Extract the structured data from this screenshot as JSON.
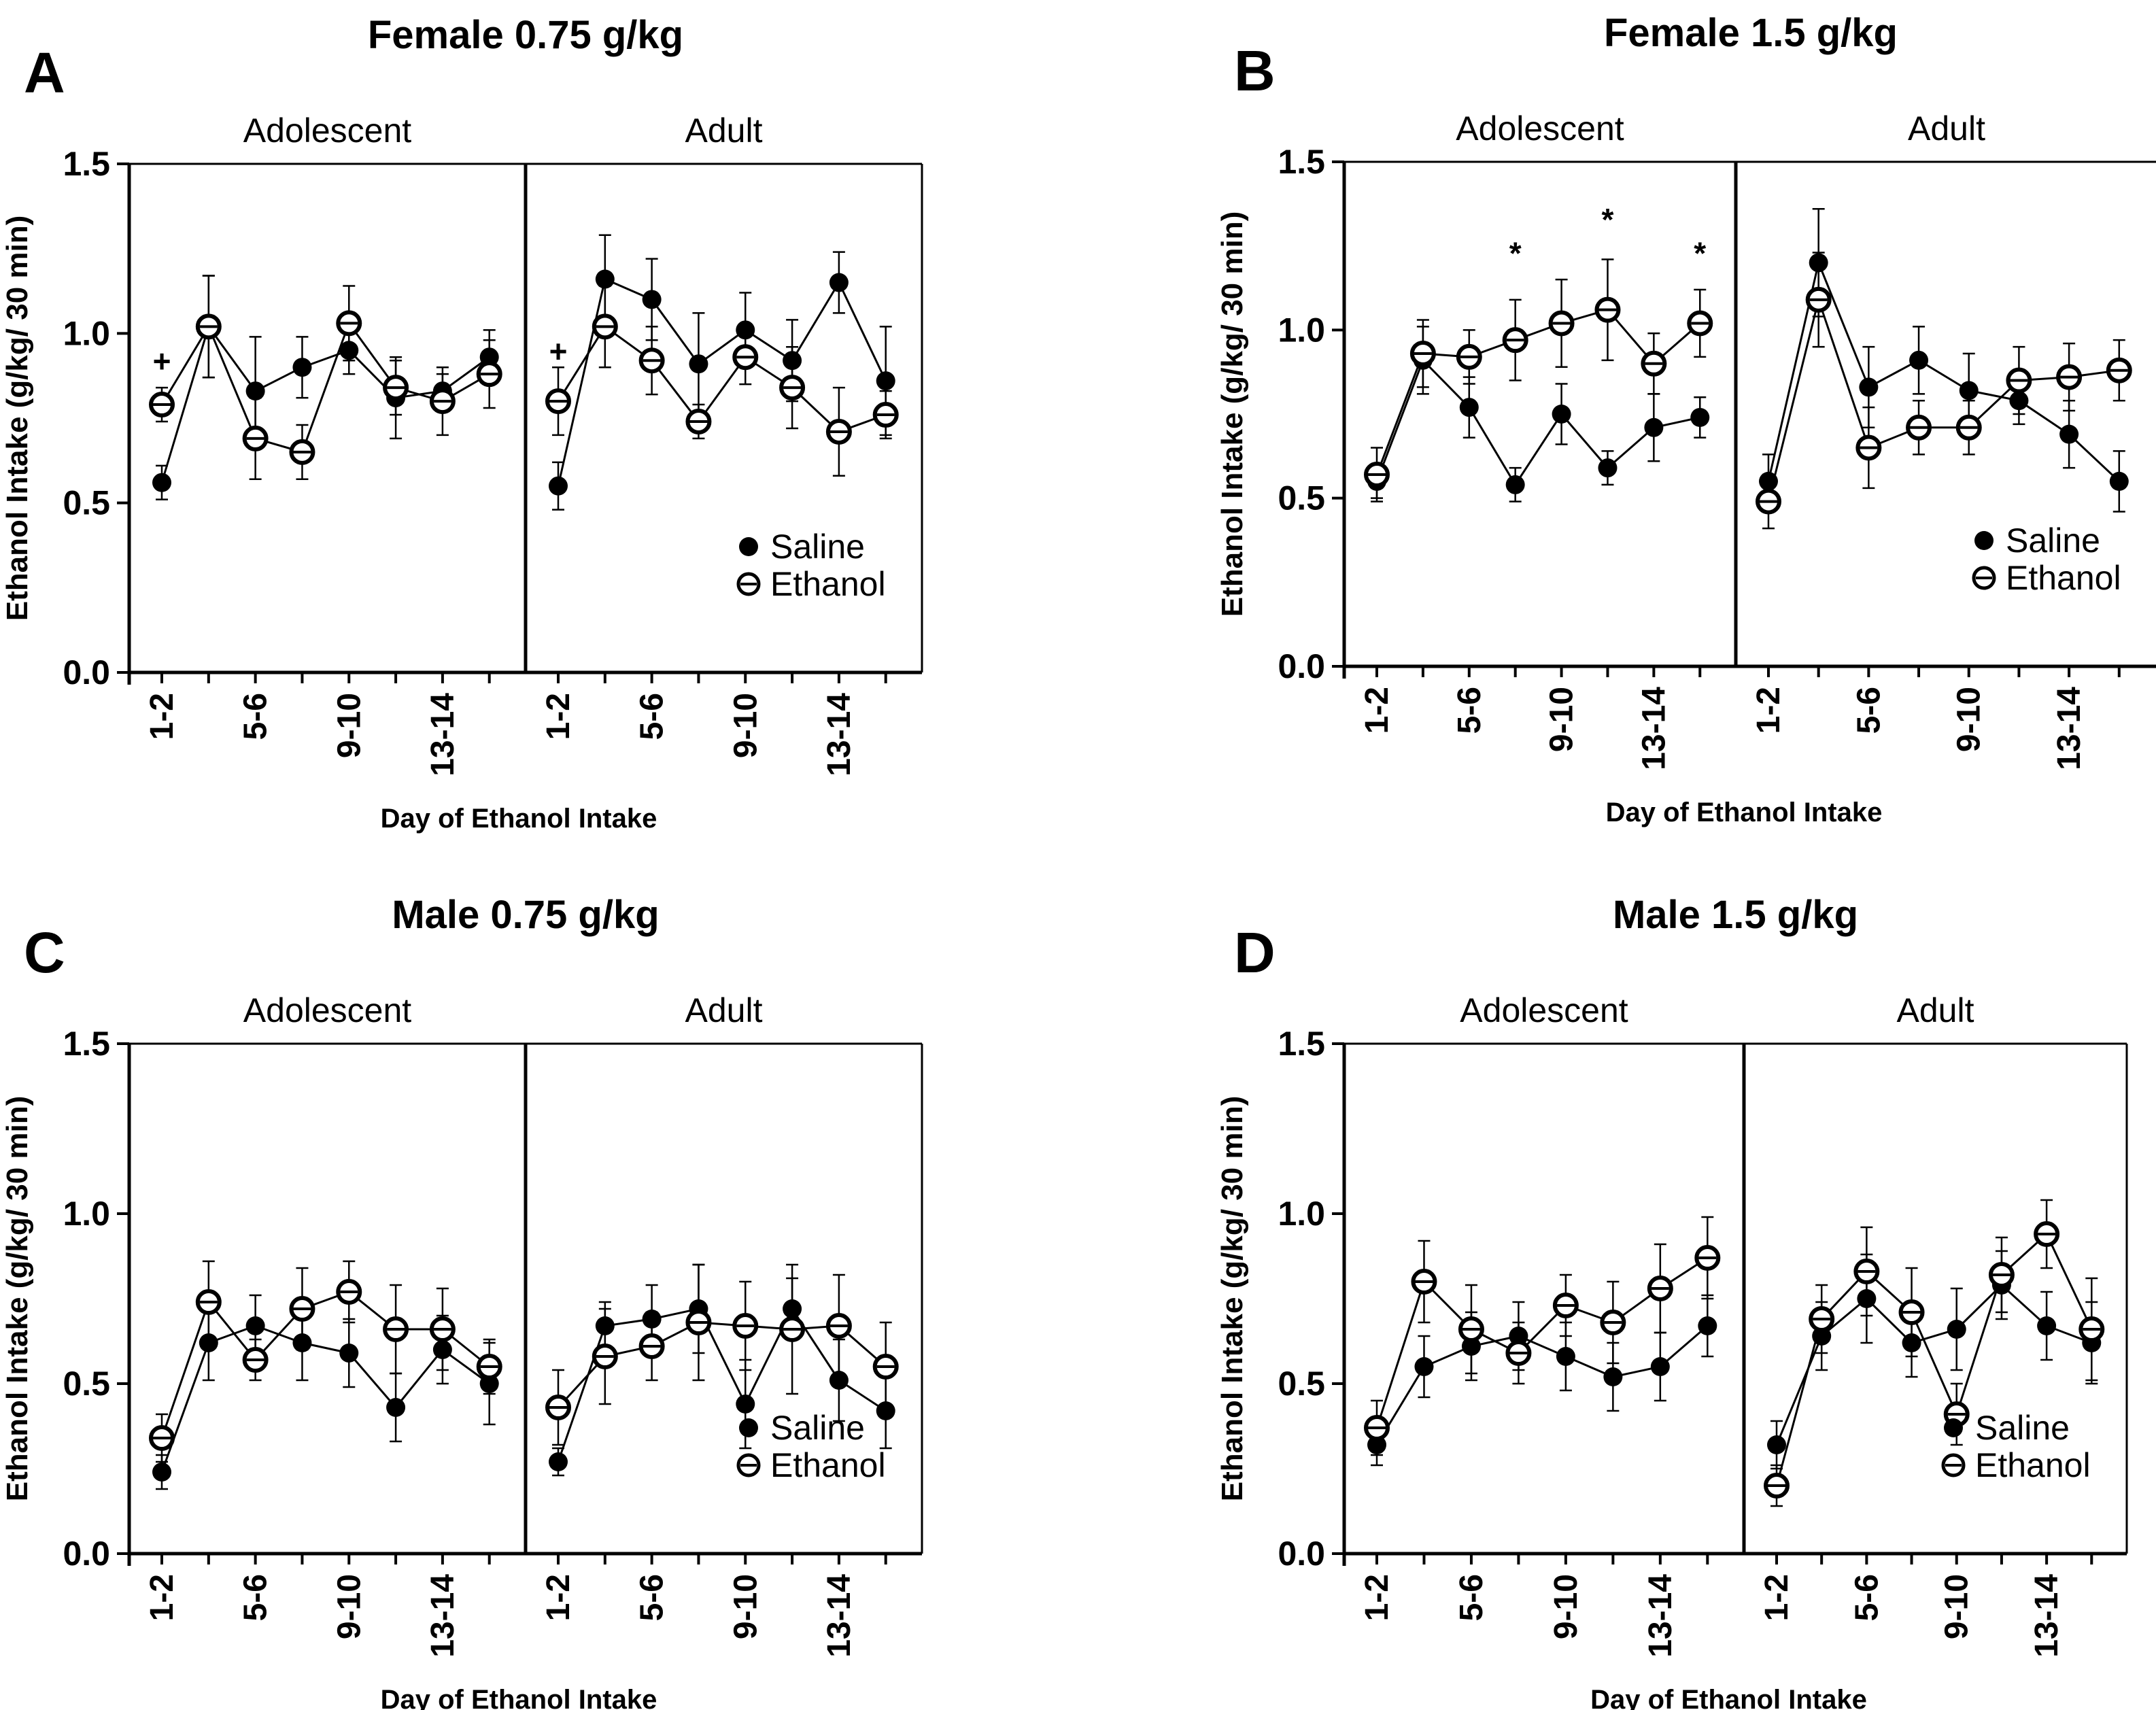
{
  "chart_data": [
    {
      "id": "A",
      "type": "line",
      "title": "Female 0.75 g/kg",
      "letter": "A",
      "ylabel": "Ethanol Intake (g/kg/ 30 min)",
      "xlabel": "Day of Ethanol Intake",
      "ylim": [
        0,
        1.5
      ],
      "yticks": [
        "0.0",
        "0.5",
        "1.0",
        "1.5"
      ],
      "legend": [
        "Saline",
        "Ethanol"
      ],
      "legend_position": "bottom-right",
      "panels": [
        {
          "label": "Adolescent",
          "xticks": [
            "1-2",
            "5-6",
            "9-10",
            "13-14"
          ],
          "saline": {
            "values": [
              0.56,
              1.02,
              0.83,
              0.9,
              0.95,
              0.81,
              0.83,
              0.93
            ],
            "errors": [
              0.05,
              0.15,
              0.16,
              0.09,
              0.07,
              0.12,
              0.05,
              0.08
            ]
          },
          "ethanol": {
            "values": [
              0.79,
              1.02,
              0.69,
              0.65,
              1.03,
              0.84,
              0.8,
              0.88
            ],
            "errors": [
              0.05,
              0.15,
              0.12,
              0.08,
              0.11,
              0.08,
              0.1,
              0.1
            ]
          },
          "annotations": [
            {
              "text": "+",
              "index": 0,
              "y": 0.91
            }
          ]
        },
        {
          "label": "Adult",
          "xticks": [
            "1-2",
            "5-6",
            "9-10",
            "13-14"
          ],
          "saline": {
            "values": [
              0.55,
              1.16,
              1.1,
              0.91,
              1.01,
              0.92,
              1.15,
              0.86
            ],
            "errors": [
              0.07,
              0.13,
              0.12,
              0.15,
              0.11,
              0.12,
              0.09,
              0.16
            ]
          },
          "ethanol": {
            "values": [
              0.8,
              1.02,
              0.92,
              0.74,
              0.93,
              0.84,
              0.71,
              0.76
            ],
            "errors": [
              0.1,
              0.12,
              0.1,
              0.05,
              0.08,
              0.12,
              0.13,
              0.07
            ]
          },
          "annotations": [
            {
              "text": "+",
              "index": 0,
              "y": 0.94
            }
          ]
        }
      ]
    },
    {
      "id": "B",
      "type": "line",
      "title": "Female 1.5 g/kg",
      "letter": "B",
      "ylabel": "Ethanol Intake (g/kg/ 30 min)",
      "xlabel": "Day of Ethanol Intake",
      "ylim": [
        0,
        1.5
      ],
      "yticks": [
        "0.0",
        "0.5",
        "1.0",
        "1.5"
      ],
      "legend": [
        "Saline",
        "Ethanol"
      ],
      "legend_position": "bottom-right",
      "panels": [
        {
          "label": "Adolescent",
          "xticks": [
            "1-2",
            "5-6",
            "9-10",
            "13-14"
          ],
          "saline": {
            "values": [
              0.55,
              0.91,
              0.77,
              0.54,
              0.75,
              0.59,
              0.71,
              0.74
            ],
            "errors": [
              0.05,
              0.1,
              0.09,
              0.05,
              0.09,
              0.05,
              0.1,
              0.06
            ]
          },
          "ethanol": {
            "values": [
              0.57,
              0.93,
              0.92,
              0.97,
              1.02,
              1.06,
              0.9,
              1.02
            ],
            "errors": [
              0.08,
              0.1,
              0.08,
              0.12,
              0.13,
              0.15,
              0.09,
              0.1
            ]
          },
          "annotations": [
            {
              "text": "*",
              "index": 3,
              "y": 1.22
            },
            {
              "text": "*",
              "index": 5,
              "y": 1.32
            },
            {
              "text": "*",
              "index": 7,
              "y": 1.22
            }
          ]
        },
        {
          "label": "Adult",
          "xticks": [
            "1-2",
            "5-6",
            "9-10",
            "13-14"
          ],
          "saline": {
            "values": [
              0.55,
              1.2,
              0.83,
              0.91,
              0.82,
              0.79,
              0.69,
              0.55
            ],
            "errors": [
              0.08,
              0.16,
              0.12,
              0.1,
              0.11,
              0.07,
              0.1,
              0.09
            ]
          },
          "ethanol": {
            "values": [
              0.49,
              1.09,
              0.65,
              0.71,
              0.71,
              0.85,
              0.86,
              0.88
            ],
            "errors": [
              0.08,
              0.14,
              0.12,
              0.08,
              0.08,
              0.1,
              0.1,
              0.09
            ]
          },
          "annotations": []
        }
      ]
    },
    {
      "id": "C",
      "type": "line",
      "title": "Male 0.75 g/kg",
      "letter": "C",
      "ylabel": "Ethanol Intake (g/kg/ 30 min)",
      "xlabel": "Day of Ethanol Intake",
      "ylim": [
        0,
        1.5
      ],
      "yticks": [
        "0.0",
        "0.5",
        "1.0",
        "1.5"
      ],
      "legend": [
        "Saline",
        "Ethanol"
      ],
      "legend_position": "bottom-right",
      "panels": [
        {
          "label": "Adolescent",
          "xticks": [
            "1-2",
            "5-6",
            "9-10",
            "13-14"
          ],
          "saline": {
            "values": [
              0.24,
              0.62,
              0.67,
              0.62,
              0.59,
              0.43,
              0.6,
              0.5
            ],
            "errors": [
              0.05,
              0.11,
              0.09,
              0.11,
              0.1,
              0.1,
              0.1,
              0.12
            ]
          },
          "ethanol": {
            "values": [
              0.34,
              0.74,
              0.57,
              0.72,
              0.77,
              0.66,
              0.66,
              0.55
            ],
            "errors": [
              0.07,
              0.12,
              0.06,
              0.12,
              0.09,
              0.13,
              0.12,
              0.08
            ]
          },
          "annotations": []
        },
        {
          "label": "Adult",
          "xticks": [
            "1-2",
            "5-6",
            "9-10",
            "13-14"
          ],
          "saline": {
            "values": [
              0.27,
              0.67,
              0.69,
              0.72,
              0.44,
              0.72,
              0.51,
              0.42
            ],
            "errors": [
              0.04,
              0.07,
              0.1,
              0.13,
              0.13,
              0.09,
              0.12,
              0.11
            ]
          },
          "ethanol": {
            "values": [
              0.43,
              0.58,
              0.61,
              0.68,
              0.67,
              0.66,
              0.67,
              0.55
            ],
            "errors": [
              0.11,
              0.14,
              0.1,
              0.17,
              0.13,
              0.19,
              0.15,
              0.13
            ]
          },
          "annotations": []
        }
      ]
    },
    {
      "id": "D",
      "type": "line",
      "title": "Male 1.5 g/kg",
      "letter": "D",
      "ylabel": "Ethanol Intake (g/kg/ 30 min)",
      "xlabel": "Day of Ethanol Intake",
      "ylim": [
        0,
        1.5
      ],
      "yticks": [
        "0.0",
        "0.5",
        "1.0",
        "1.5"
      ],
      "legend": [
        "Saline",
        "Ethanol"
      ],
      "legend_position": "bottom-right",
      "panels": [
        {
          "label": "Adolescent",
          "xticks": [
            "1-2",
            "5-6",
            "9-10",
            "13-14"
          ],
          "saline": {
            "values": [
              0.32,
              0.55,
              0.61,
              0.64,
              0.58,
              0.52,
              0.55,
              0.67
            ],
            "errors": [
              0.06,
              0.09,
              0.1,
              0.1,
              0.1,
              0.1,
              0.1,
              0.09
            ]
          },
          "ethanol": {
            "values": [
              0.37,
              0.8,
              0.66,
              0.59,
              0.73,
              0.68,
              0.78,
              0.87
            ],
            "errors": [
              0.08,
              0.12,
              0.13,
              0.09,
              0.09,
              0.12,
              0.13,
              0.12
            ]
          },
          "annotations": []
        },
        {
          "label": "Adult",
          "xticks": [
            "1-2",
            "5-6",
            "9-10",
            "13-14"
          ],
          "saline": {
            "values": [
              0.32,
              0.64,
              0.75,
              0.62,
              0.66,
              0.79,
              0.67,
              0.62
            ],
            "errors": [
              0.07,
              0.1,
              0.13,
              0.1,
              0.12,
              0.1,
              0.1,
              0.12
            ]
          },
          "ethanol": {
            "values": [
              0.2,
              0.69,
              0.83,
              0.71,
              0.41,
              0.82,
              0.94,
              0.66
            ],
            "errors": [
              0.06,
              0.1,
              0.13,
              0.13,
              0.09,
              0.11,
              0.1,
              0.15
            ]
          },
          "annotations": []
        }
      ]
    }
  ]
}
